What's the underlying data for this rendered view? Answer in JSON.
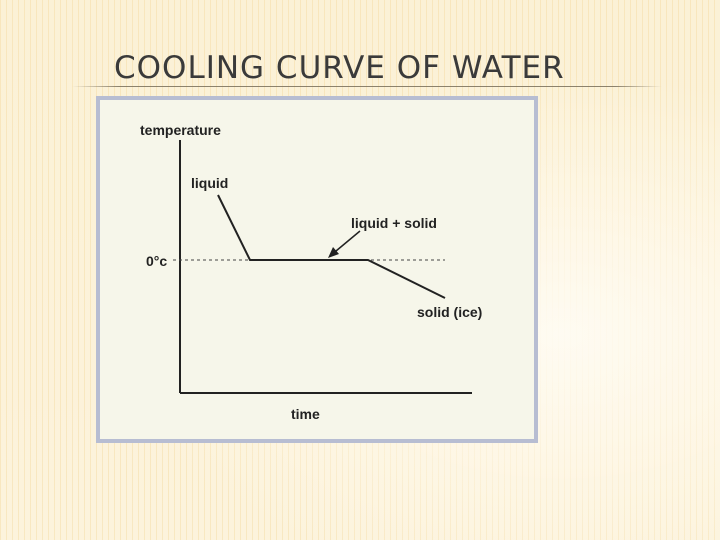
{
  "slide": {
    "title": "COOLING CURVE OF WATER"
  },
  "diagram": {
    "y_axis_label": "temperature",
    "x_axis_label": "time",
    "reference_line_label": "0°c",
    "phases": {
      "liquid": "liquid",
      "transition": "liquid + solid",
      "solid": "solid (ice)"
    }
  },
  "colors": {
    "curve": "#222222",
    "frame_border": "#b7bdd2",
    "frame_fill": "#f6f6ea"
  }
}
